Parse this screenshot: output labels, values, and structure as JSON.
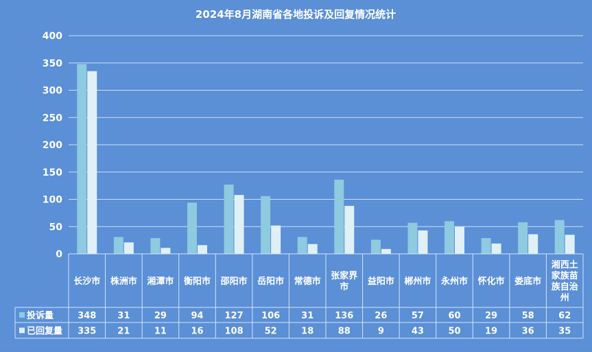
{
  "chart_data": {
    "type": "bar",
    "title": "2024年8月湖南省各地投诉及回复情况统计",
    "categories": [
      [
        "长沙市"
      ],
      [
        "株洲市"
      ],
      [
        "湘潭市"
      ],
      [
        "衡阳市"
      ],
      [
        "邵阳市"
      ],
      [
        "岳阳市"
      ],
      [
        "常德市"
      ],
      [
        "张家界",
        "市"
      ],
      [
        "益阳市"
      ],
      [
        "郴州市"
      ],
      [
        "永州市"
      ],
      [
        "怀化市"
      ],
      [
        "娄底市"
      ],
      [
        "湘西土",
        "家族苗",
        "族自治",
        "州"
      ]
    ],
    "series": [
      {
        "name": "投诉量",
        "color": "#8ecae0",
        "values": [
          348,
          31,
          29,
          94,
          127,
          106,
          31,
          136,
          26,
          57,
          60,
          29,
          58,
          62
        ]
      },
      {
        "name": "已回复量",
        "color": "#dff0f7",
        "values": [
          335,
          21,
          11,
          16,
          108,
          52,
          18,
          88,
          9,
          43,
          50,
          19,
          36,
          35
        ]
      }
    ],
    "y_ticks": [
      "0",
      "50",
      "100",
      "150",
      "200",
      "250",
      "300",
      "350",
      "400"
    ],
    "ylim": [
      0,
      400
    ],
    "grid": true,
    "legend": "data-table"
  }
}
